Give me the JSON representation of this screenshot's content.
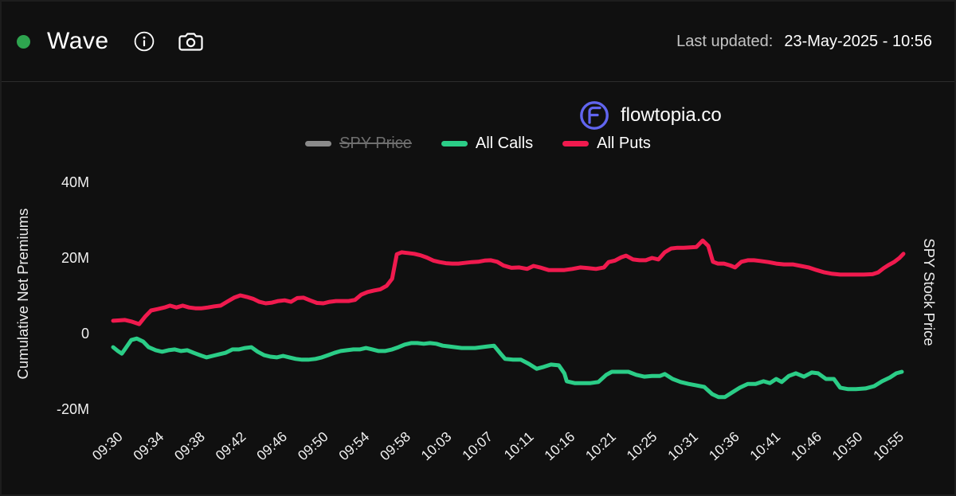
{
  "header": {
    "title": "Wave",
    "status_color": "#2ea44f",
    "last_updated_label": "Last updated:",
    "last_updated_value": "23-May-2025 - 10:56"
  },
  "brand": {
    "name": "flowtopia.co",
    "logo_color": "#6165ef"
  },
  "legend": [
    {
      "label": "SPY Price",
      "color": "#8a8a8a",
      "disabled": true
    },
    {
      "label": "All Calls",
      "color": "#2bcd87",
      "disabled": false
    },
    {
      "label": "All Puts",
      "color": "#f01a4e",
      "disabled": false
    }
  ],
  "chart_data": {
    "type": "line",
    "title": "",
    "ylabel_left": "Cumulative Net Premiums",
    "ylabel_right": "SPY Stock Price",
    "unit": "M = millions USD net premium",
    "ylim": [
      -24,
      45
    ],
    "grid": false,
    "legend_position": "top",
    "y_ticks": [
      {
        "v": 40,
        "label": "40M"
      },
      {
        "v": 20,
        "label": "20M"
      },
      {
        "v": 0,
        "label": "0"
      },
      {
        "v": -20,
        "label": "-20M"
      }
    ],
    "x_tick_labels": [
      "09:30",
      "09:34",
      "09:38",
      "09:42",
      "09:46",
      "09:50",
      "09:54",
      "09:58",
      "10:03",
      "10:07",
      "10:11",
      "10:16",
      "10:21",
      "10:25",
      "10:31",
      "10:36",
      "10:41",
      "10:46",
      "10:50",
      "10:55"
    ],
    "series": [
      {
        "name": "All Puts",
        "color": "#f01a4e",
        "points": [
          [
            0.0,
            3.4
          ],
          [
            0.008,
            3.5
          ],
          [
            0.015,
            3.6
          ],
          [
            0.023,
            3.2
          ],
          [
            0.033,
            2.5
          ],
          [
            0.041,
            4.6
          ],
          [
            0.048,
            6.1
          ],
          [
            0.057,
            6.5
          ],
          [
            0.065,
            6.9
          ],
          [
            0.072,
            7.4
          ],
          [
            0.08,
            6.9
          ],
          [
            0.088,
            7.4
          ],
          [
            0.096,
            6.9
          ],
          [
            0.104,
            6.7
          ],
          [
            0.112,
            6.7
          ],
          [
            0.12,
            6.9
          ],
          [
            0.128,
            7.2
          ],
          [
            0.136,
            7.4
          ],
          [
            0.144,
            8.4
          ],
          [
            0.153,
            9.5
          ],
          [
            0.161,
            10.1
          ],
          [
            0.169,
            9.7
          ],
          [
            0.177,
            9.2
          ],
          [
            0.185,
            8.4
          ],
          [
            0.193,
            8.0
          ],
          [
            0.201,
            8.2
          ],
          [
            0.209,
            8.6
          ],
          [
            0.217,
            8.8
          ],
          [
            0.225,
            8.4
          ],
          [
            0.233,
            9.4
          ],
          [
            0.241,
            9.5
          ],
          [
            0.249,
            8.8
          ],
          [
            0.258,
            8.1
          ],
          [
            0.266,
            8.0
          ],
          [
            0.274,
            8.4
          ],
          [
            0.282,
            8.6
          ],
          [
            0.29,
            8.6
          ],
          [
            0.298,
            8.6
          ],
          [
            0.306,
            8.9
          ],
          [
            0.314,
            10.3
          ],
          [
            0.322,
            11.0
          ],
          [
            0.33,
            11.4
          ],
          [
            0.338,
            11.7
          ],
          [
            0.346,
            12.6
          ],
          [
            0.353,
            14.5
          ],
          [
            0.359,
            21.0
          ],
          [
            0.365,
            21.5
          ],
          [
            0.373,
            21.3
          ],
          [
            0.381,
            21.1
          ],
          [
            0.389,
            20.7
          ],
          [
            0.397,
            20.1
          ],
          [
            0.405,
            19.3
          ],
          [
            0.413,
            18.9
          ],
          [
            0.421,
            18.6
          ],
          [
            0.429,
            18.5
          ],
          [
            0.437,
            18.5
          ],
          [
            0.445,
            18.7
          ],
          [
            0.454,
            18.9
          ],
          [
            0.462,
            19.0
          ],
          [
            0.47,
            19.3
          ],
          [
            0.478,
            19.4
          ],
          [
            0.486,
            19.0
          ],
          [
            0.494,
            18.0
          ],
          [
            0.504,
            17.4
          ],
          [
            0.514,
            17.5
          ],
          [
            0.524,
            17.1
          ],
          [
            0.532,
            17.9
          ],
          [
            0.54,
            17.5
          ],
          [
            0.551,
            16.8
          ],
          [
            0.561,
            16.8
          ],
          [
            0.571,
            16.8
          ],
          [
            0.581,
            17.1
          ],
          [
            0.591,
            17.5
          ],
          [
            0.601,
            17.3
          ],
          [
            0.611,
            17.1
          ],
          [
            0.621,
            17.5
          ],
          [
            0.627,
            18.9
          ],
          [
            0.635,
            19.3
          ],
          [
            0.643,
            20.2
          ],
          [
            0.649,
            20.6
          ],
          [
            0.658,
            19.6
          ],
          [
            0.666,
            19.4
          ],
          [
            0.674,
            19.4
          ],
          [
            0.682,
            20.0
          ],
          [
            0.69,
            19.6
          ],
          [
            0.698,
            21.5
          ],
          [
            0.706,
            22.5
          ],
          [
            0.714,
            22.7
          ],
          [
            0.722,
            22.7
          ],
          [
            0.73,
            22.8
          ],
          [
            0.738,
            22.9
          ],
          [
            0.746,
            24.6
          ],
          [
            0.753,
            23.2
          ],
          [
            0.759,
            19.0
          ],
          [
            0.765,
            18.5
          ],
          [
            0.773,
            18.5
          ],
          [
            0.781,
            18.0
          ],
          [
            0.787,
            17.5
          ],
          [
            0.795,
            19.0
          ],
          [
            0.803,
            19.4
          ],
          [
            0.811,
            19.4
          ],
          [
            0.819,
            19.2
          ],
          [
            0.829,
            18.9
          ],
          [
            0.839,
            18.5
          ],
          [
            0.849,
            18.3
          ],
          [
            0.86,
            18.3
          ],
          [
            0.87,
            17.9
          ],
          [
            0.88,
            17.5
          ],
          [
            0.89,
            16.8
          ],
          [
            0.9,
            16.2
          ],
          [
            0.91,
            15.8
          ],
          [
            0.92,
            15.6
          ],
          [
            0.93,
            15.6
          ],
          [
            0.94,
            15.6
          ],
          [
            0.95,
            15.6
          ],
          [
            0.961,
            15.7
          ],
          [
            0.968,
            16.2
          ],
          [
            0.975,
            17.3
          ],
          [
            0.981,
            18.1
          ],
          [
            0.988,
            18.9
          ],
          [
            0.995,
            20.0
          ],
          [
            1.0,
            21.1
          ]
        ]
      },
      {
        "name": "All Calls",
        "color": "#2bcd87",
        "points": [
          [
            0.0,
            -3.6
          ],
          [
            0.006,
            -4.6
          ],
          [
            0.011,
            -5.3
          ],
          [
            0.016,
            -3.8
          ],
          [
            0.023,
            -1.7
          ],
          [
            0.03,
            -1.3
          ],
          [
            0.038,
            -2.1
          ],
          [
            0.045,
            -3.6
          ],
          [
            0.054,
            -4.4
          ],
          [
            0.062,
            -4.8
          ],
          [
            0.07,
            -4.4
          ],
          [
            0.078,
            -4.2
          ],
          [
            0.086,
            -4.6
          ],
          [
            0.094,
            -4.4
          ],
          [
            0.102,
            -5.1
          ],
          [
            0.11,
            -5.7
          ],
          [
            0.118,
            -6.3
          ],
          [
            0.126,
            -5.9
          ],
          [
            0.134,
            -5.5
          ],
          [
            0.142,
            -5.1
          ],
          [
            0.151,
            -4.2
          ],
          [
            0.159,
            -4.2
          ],
          [
            0.167,
            -3.8
          ],
          [
            0.175,
            -3.6
          ],
          [
            0.183,
            -4.8
          ],
          [
            0.191,
            -5.7
          ],
          [
            0.199,
            -6.1
          ],
          [
            0.207,
            -6.3
          ],
          [
            0.215,
            -5.9
          ],
          [
            0.223,
            -6.3
          ],
          [
            0.231,
            -6.7
          ],
          [
            0.239,
            -6.9
          ],
          [
            0.247,
            -6.9
          ],
          [
            0.256,
            -6.7
          ],
          [
            0.264,
            -6.3
          ],
          [
            0.272,
            -5.7
          ],
          [
            0.28,
            -5.1
          ],
          [
            0.288,
            -4.6
          ],
          [
            0.296,
            -4.4
          ],
          [
            0.304,
            -4.2
          ],
          [
            0.312,
            -4.2
          ],
          [
            0.32,
            -3.8
          ],
          [
            0.328,
            -4.2
          ],
          [
            0.336,
            -4.6
          ],
          [
            0.344,
            -4.6
          ],
          [
            0.353,
            -4.2
          ],
          [
            0.361,
            -3.6
          ],
          [
            0.369,
            -2.9
          ],
          [
            0.377,
            -2.5
          ],
          [
            0.385,
            -2.5
          ],
          [
            0.393,
            -2.7
          ],
          [
            0.401,
            -2.5
          ],
          [
            0.409,
            -2.7
          ],
          [
            0.417,
            -3.2
          ],
          [
            0.425,
            -3.4
          ],
          [
            0.433,
            -3.6
          ],
          [
            0.441,
            -3.8
          ],
          [
            0.449,
            -3.8
          ],
          [
            0.458,
            -3.8
          ],
          [
            0.466,
            -3.6
          ],
          [
            0.474,
            -3.4
          ],
          [
            0.482,
            -3.2
          ],
          [
            0.491,
            -5.5
          ],
          [
            0.496,
            -6.7
          ],
          [
            0.506,
            -6.9
          ],
          [
            0.516,
            -6.9
          ],
          [
            0.526,
            -8.0
          ],
          [
            0.536,
            -9.3
          ],
          [
            0.545,
            -8.8
          ],
          [
            0.554,
            -8.2
          ],
          [
            0.564,
            -8.4
          ],
          [
            0.571,
            -10.5
          ],
          [
            0.574,
            -12.6
          ],
          [
            0.584,
            -13.1
          ],
          [
            0.594,
            -13.1
          ],
          [
            0.604,
            -13.1
          ],
          [
            0.614,
            -12.8
          ],
          [
            0.624,
            -10.9
          ],
          [
            0.631,
            -10.1
          ],
          [
            0.641,
            -10.1
          ],
          [
            0.652,
            -10.1
          ],
          [
            0.662,
            -10.9
          ],
          [
            0.672,
            -11.4
          ],
          [
            0.682,
            -11.2
          ],
          [
            0.692,
            -11.2
          ],
          [
            0.698,
            -10.7
          ],
          [
            0.708,
            -12.0
          ],
          [
            0.718,
            -12.8
          ],
          [
            0.728,
            -13.3
          ],
          [
            0.738,
            -13.7
          ],
          [
            0.748,
            -14.1
          ],
          [
            0.758,
            -16.0
          ],
          [
            0.766,
            -16.8
          ],
          [
            0.774,
            -16.8
          ],
          [
            0.783,
            -15.6
          ],
          [
            0.793,
            -14.3
          ],
          [
            0.803,
            -13.3
          ],
          [
            0.813,
            -13.3
          ],
          [
            0.823,
            -12.6
          ],
          [
            0.831,
            -13.1
          ],
          [
            0.839,
            -12.0
          ],
          [
            0.846,
            -12.8
          ],
          [
            0.855,
            -11.2
          ],
          [
            0.864,
            -10.5
          ],
          [
            0.874,
            -11.4
          ],
          [
            0.884,
            -10.3
          ],
          [
            0.892,
            -10.5
          ],
          [
            0.902,
            -12.0
          ],
          [
            0.912,
            -12.0
          ],
          [
            0.92,
            -14.3
          ],
          [
            0.93,
            -14.7
          ],
          [
            0.94,
            -14.7
          ],
          [
            0.952,
            -14.5
          ],
          [
            0.963,
            -13.9
          ],
          [
            0.973,
            -12.6
          ],
          [
            0.983,
            -11.6
          ],
          [
            0.991,
            -10.5
          ],
          [
            0.998,
            -10.1
          ]
        ]
      }
    ]
  }
}
